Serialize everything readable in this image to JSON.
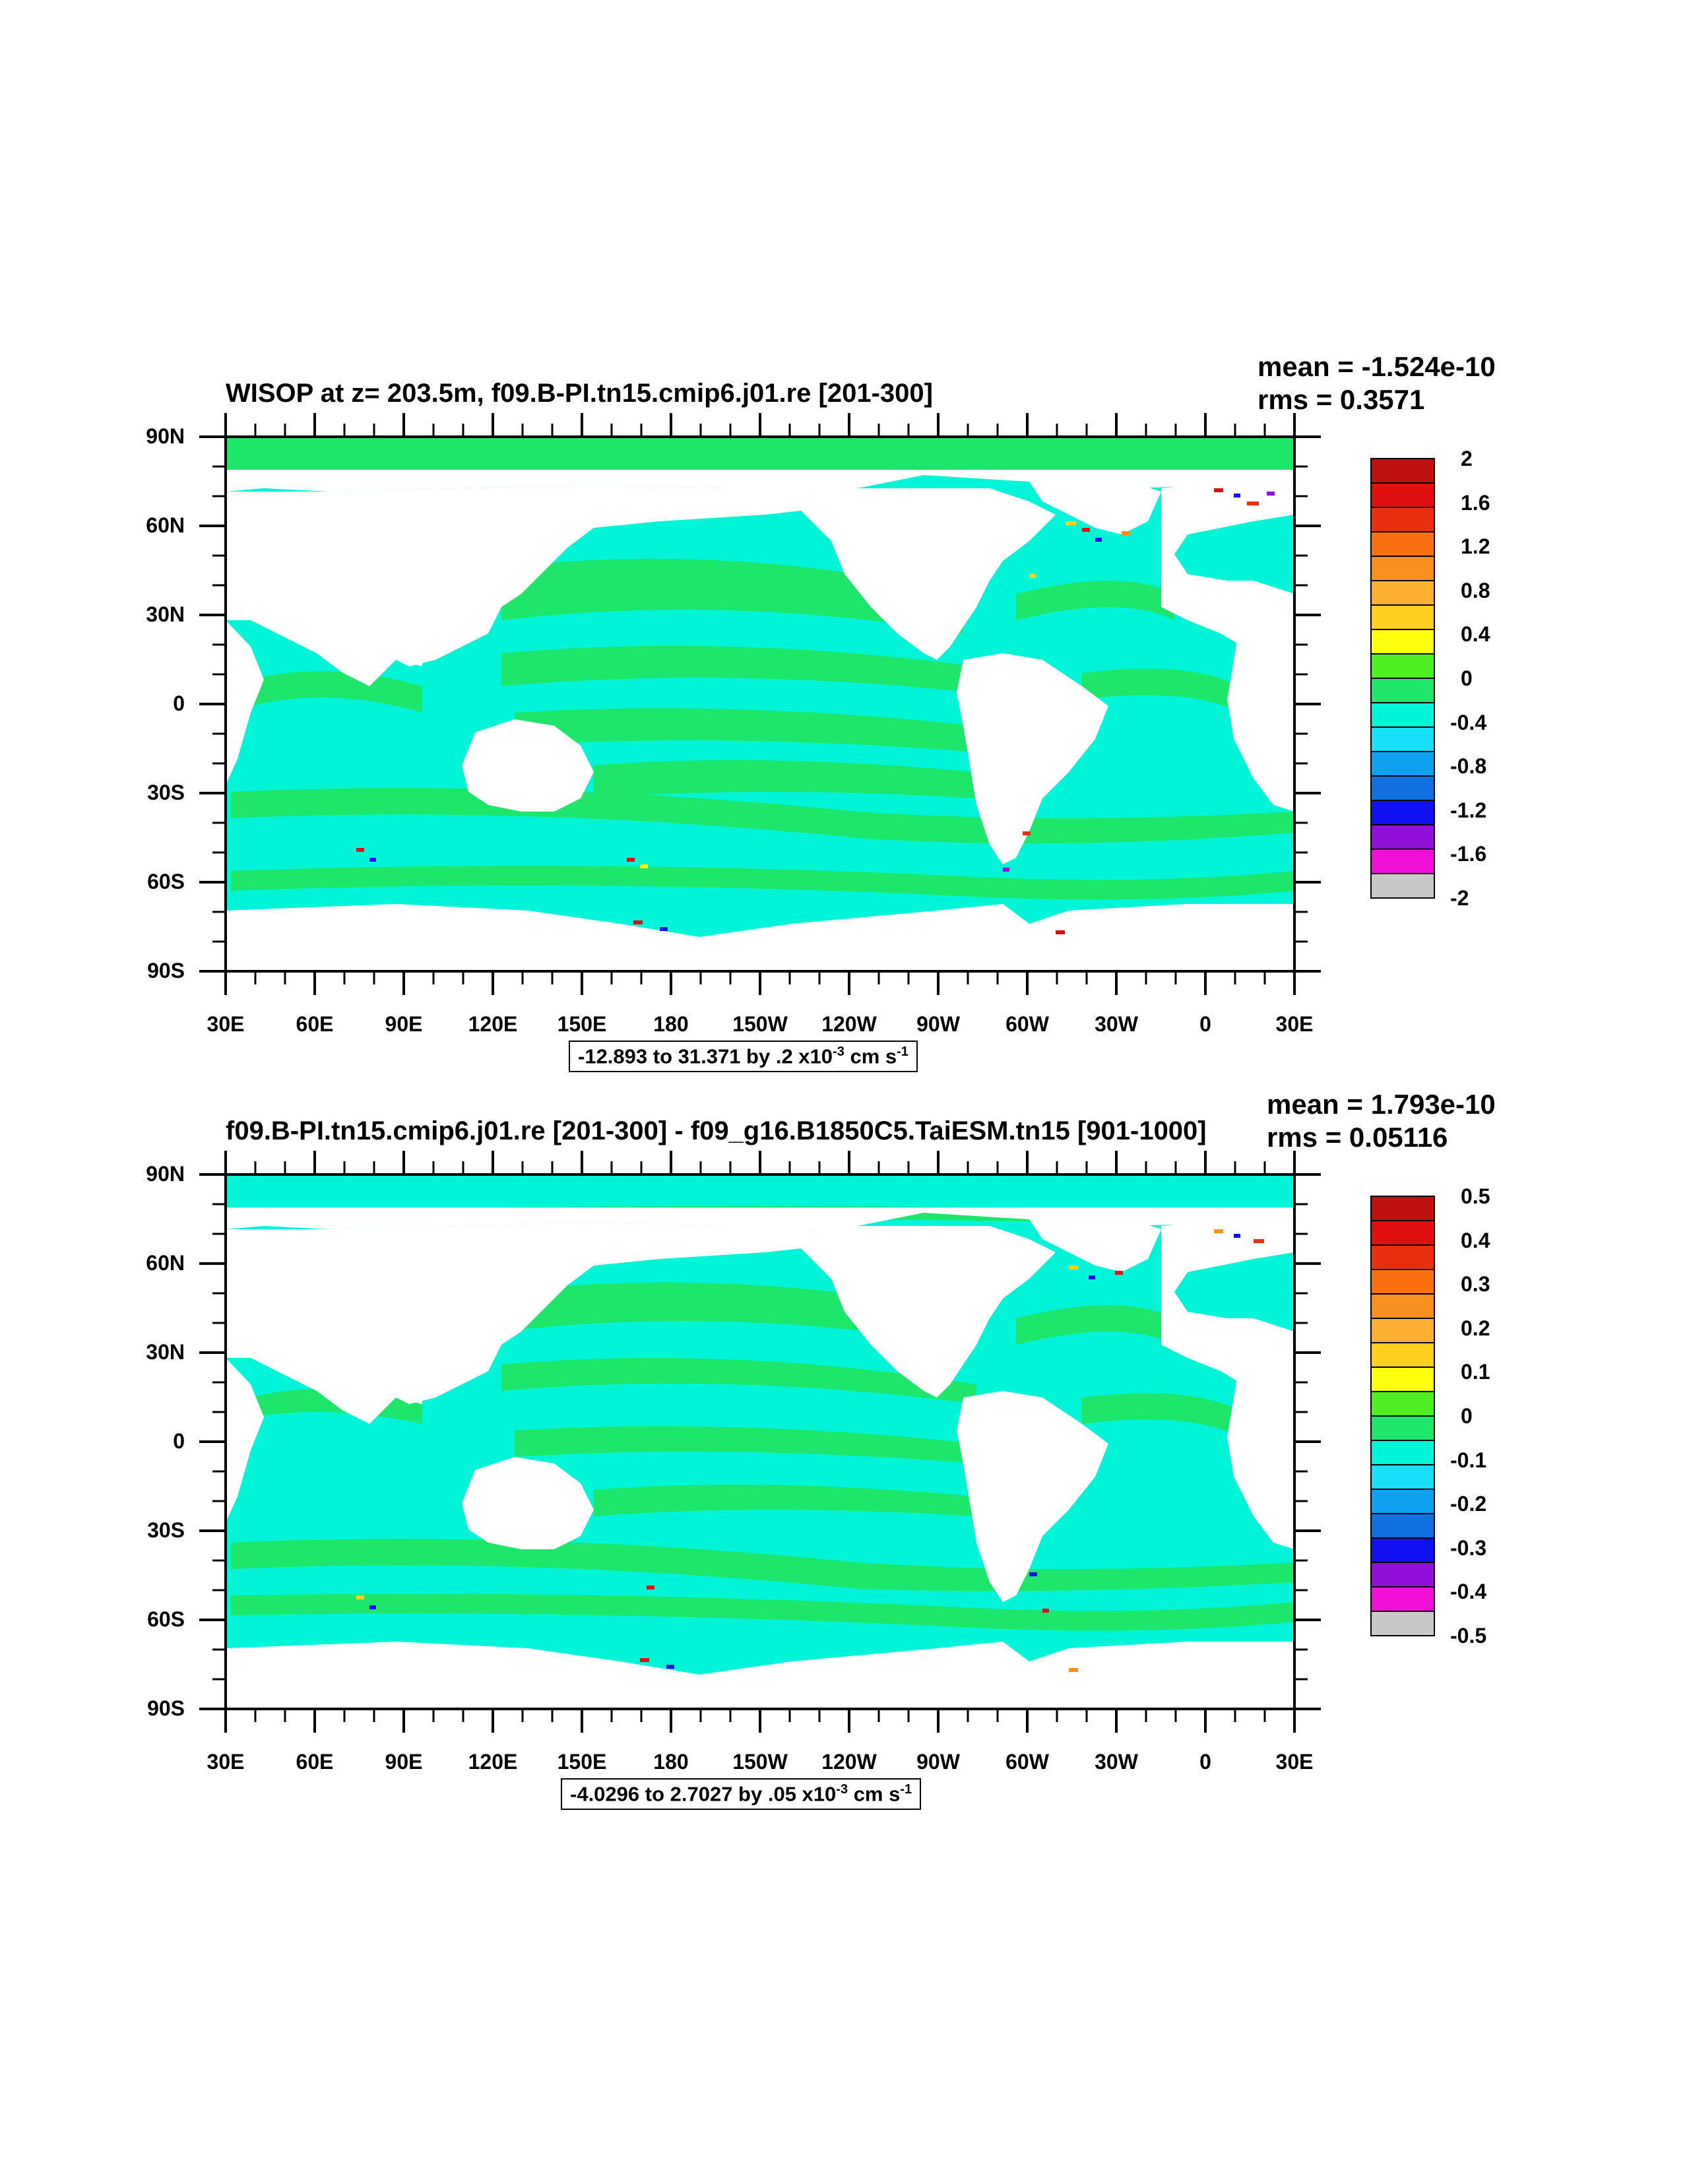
{
  "colors": {
    "land": "#ffffff",
    "cyan_ocean": "#00f5d8",
    "green_ocean": "#1ee66a",
    "frame": "#000000",
    "palette": [
      "#6e6e6e",
      "#c8c8c8",
      "#f010d8",
      "#9010d8",
      "#1010f0",
      "#1070e0",
      "#10a0f0",
      "#18e0f8",
      "#00f5d8",
      "#1ee66a",
      "#50f020",
      "#ffff10",
      "#ffd020",
      "#ffb030",
      "#f89020",
      "#f87010",
      "#e83010",
      "#e01010",
      "#c01010"
    ]
  },
  "panels": [
    {
      "title": "WISOP at z= 203.5m, f09.B-PI.tn15.cmip6.j01.re [201-300]",
      "mean": "mean = -1.524e-10",
      "rms": "rms = 0.3571",
      "range_text": "-12.893 to 31.371 by .2 x10",
      "range_exp": "-3",
      "range_unit": " cm s",
      "range_unit_exp": "-1",
      "colorbar_labels": [
        "2",
        "1.6",
        "1.2",
        "0.8",
        "0.4",
        "0",
        "-0.4",
        "-0.8",
        "-1.2",
        "-1.6",
        "-2"
      ]
    },
    {
      "title": "f09.B-PI.tn15.cmip6.j01.re [201-300] - f09_g16.B1850C5.TaiESM.tn15 [901-1000]",
      "mean": "mean = 1.793e-10",
      "rms": "rms = 0.05116",
      "range_text": "-4.0296 to 2.7027 by .05 x10",
      "range_exp": "-3",
      "range_unit": " cm s",
      "range_unit_exp": "-1",
      "colorbar_labels": [
        "0.5",
        "0.4",
        "0.3",
        "0.2",
        "0.1",
        "0",
        "-0.1",
        "-0.2",
        "-0.3",
        "-0.4",
        "-0.5"
      ]
    }
  ],
  "axes": {
    "y_labels": [
      "90N",
      "60N",
      "30N",
      "0",
      "30S",
      "60S",
      "90S"
    ],
    "x_labels": [
      "30E",
      "60E",
      "90E",
      "120E",
      "150E",
      "180",
      "150W",
      "120W",
      "90W",
      "60W",
      "30W",
      "0",
      "30E"
    ]
  }
}
